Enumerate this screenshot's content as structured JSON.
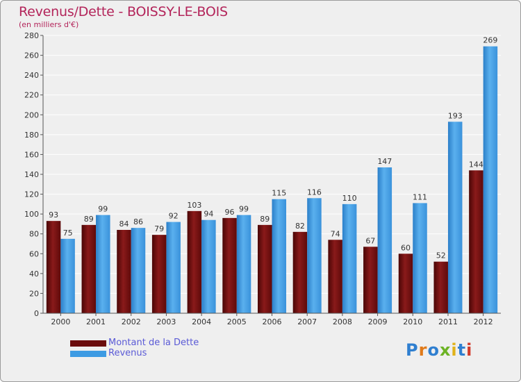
{
  "header": {
    "title": "Revenus/Dette - BOISSY-LE-BOIS",
    "subtitle": "(en milliers d'€)"
  },
  "chart_data": {
    "type": "bar",
    "title": "Revenus/Dette - BOISSY-LE-BOIS",
    "ylabel": "(en milliers d'€)",
    "xlabel": "",
    "ylim": [
      0,
      280
    ],
    "yticks": [
      0,
      20,
      40,
      60,
      80,
      100,
      120,
      140,
      160,
      180,
      200,
      220,
      240,
      260,
      280
    ],
    "grid": true,
    "legend_position": "bottom-left",
    "categories": [
      "2000",
      "2001",
      "2002",
      "2003",
      "2004",
      "2005",
      "2006",
      "2007",
      "2008",
      "2009",
      "2010",
      "2011",
      "2012"
    ],
    "series": [
      {
        "name": "Montant de la Dette",
        "color": "#7a1010",
        "values": [
          93,
          89,
          84,
          79,
          103,
          96,
          89,
          82,
          74,
          67,
          60,
          52,
          144
        ]
      },
      {
        "name": "Revenus",
        "color": "#3d9be3",
        "values": [
          75,
          99,
          86,
          92,
          94,
          99,
          115,
          116,
          110,
          147,
          111,
          193,
          269
        ]
      }
    ]
  },
  "legend": {
    "items": [
      {
        "label": "Montant de la Dette",
        "color": "#6b0c0c"
      },
      {
        "label": "Revenus",
        "color": "#3d9be3"
      }
    ]
  },
  "logo": {
    "letters": [
      "P",
      "r",
      "o",
      "x",
      "i",
      "t",
      "i"
    ],
    "colors": [
      "#2f7fd0",
      "#e07a1a",
      "#2f7fd0",
      "#6cb324",
      "#e0b21a",
      "#2f7fd0",
      "#d23a2a"
    ]
  }
}
